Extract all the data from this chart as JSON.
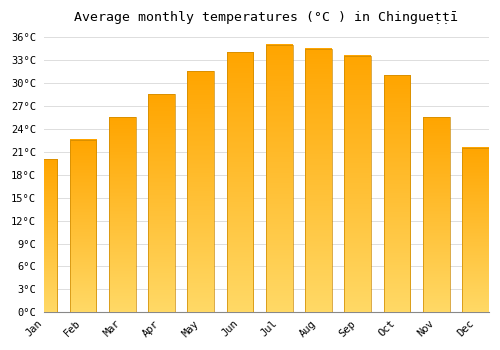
{
  "title": "Average monthly temperatures (°C ) in Chingueṭṭī",
  "months": [
    "Jan",
    "Feb",
    "Mar",
    "Apr",
    "May",
    "Jun",
    "Jul",
    "Aug",
    "Sep",
    "Oct",
    "Nov",
    "Dec"
  ],
  "temperatures": [
    20,
    22.5,
    25.5,
    28.5,
    31.5,
    34,
    35,
    34.5,
    33.5,
    31,
    25.5,
    21.5
  ],
  "bar_color": "#FFA500",
  "bar_color_light": "#FFD966",
  "bar_edge_color": "#CC8800",
  "ylim": [
    0,
    37
  ],
  "yticks": [
    0,
    3,
    6,
    9,
    12,
    15,
    18,
    21,
    24,
    27,
    30,
    33,
    36
  ],
  "background_color": "#ffffff",
  "grid_color": "#dddddd",
  "title_fontsize": 9.5,
  "tick_fontsize": 7.5
}
